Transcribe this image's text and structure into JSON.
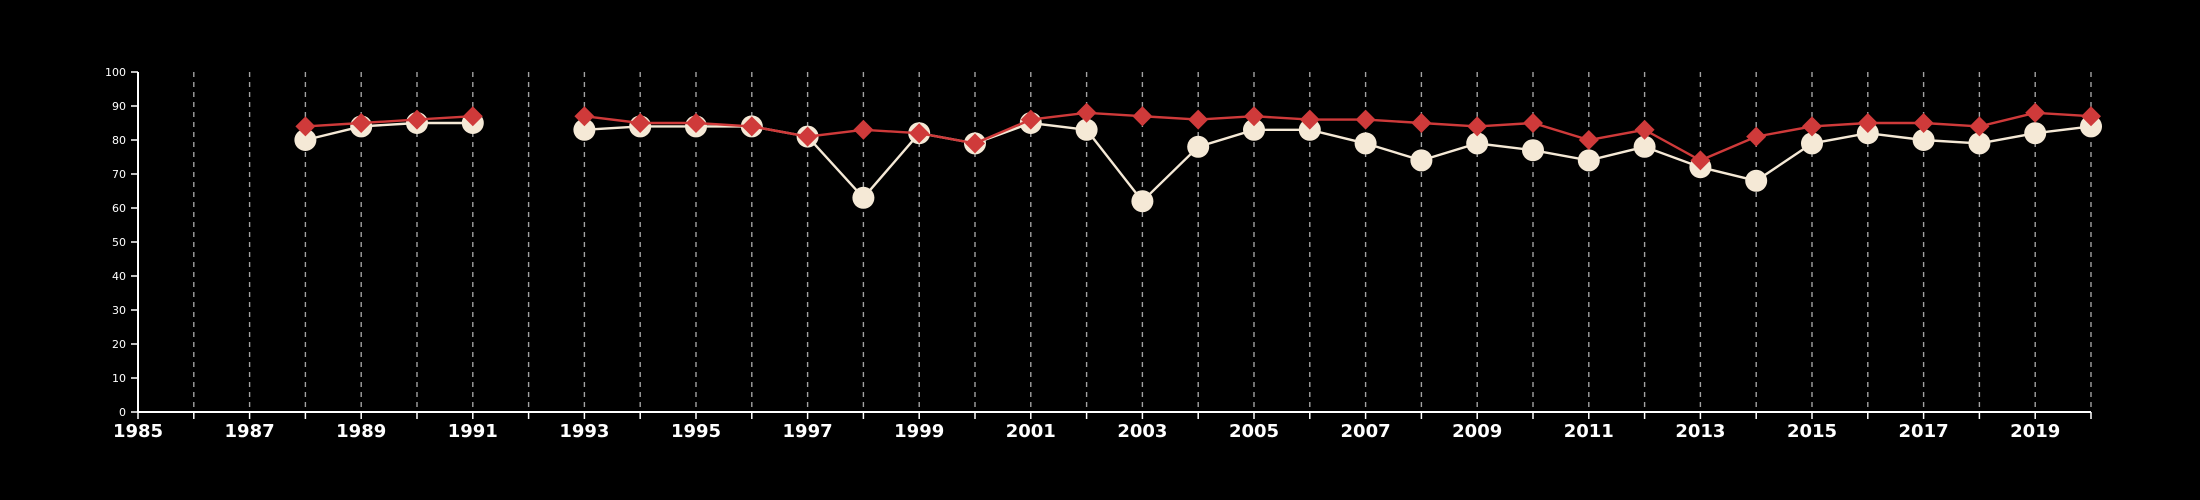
{
  "chart_data": {
    "type": "line",
    "title": "",
    "xlabel": "",
    "ylabel": "",
    "xlim": [
      1985,
      2020
    ],
    "ylim": [
      0,
      100
    ],
    "x_ticks_labeled": [
      1985,
      1987,
      1989,
      1991,
      1993,
      1995,
      1997,
      1999,
      2001,
      2003,
      2005,
      2007,
      2009,
      2011,
      2013,
      2015,
      2017,
      2019
    ],
    "y_ticks": [
      0,
      10,
      20,
      30,
      40,
      50,
      60,
      70,
      80,
      90,
      100
    ],
    "grid": "vertical-dashed",
    "background_color": "#000000",
    "axis_color": "#ffffff",
    "series": [
      {
        "color": "#f5e9d6",
        "marker": "circle",
        "points": [
          [
            1988,
            80
          ],
          [
            1989,
            84
          ],
          [
            1990,
            85
          ],
          [
            1991,
            85
          ],
          [
            1993,
            83
          ],
          [
            1994,
            84
          ],
          [
            1995,
            84
          ],
          [
            1996,
            84
          ],
          [
            1997,
            81
          ],
          [
            1998,
            63
          ],
          [
            1999,
            82
          ],
          [
            2000,
            79
          ],
          [
            2001,
            85
          ],
          [
            2002,
            83
          ],
          [
            2003,
            62
          ],
          [
            2004,
            78
          ],
          [
            2005,
            83
          ],
          [
            2006,
            83
          ],
          [
            2007,
            79
          ],
          [
            2008,
            74
          ],
          [
            2009,
            79
          ],
          [
            2010,
            77
          ],
          [
            2011,
            74
          ],
          [
            2012,
            78
          ],
          [
            2013,
            72
          ],
          [
            2014,
            68
          ],
          [
            2015,
            79
          ],
          [
            2016,
            82
          ],
          [
            2017,
            80
          ],
          [
            2018,
            79
          ],
          [
            2019,
            82
          ],
          [
            2020,
            84
          ]
        ]
      },
      {
        "color": "#cf3a3a",
        "marker": "diamond",
        "points": [
          [
            1988,
            84
          ],
          [
            1989,
            85
          ],
          [
            1990,
            86
          ],
          [
            1991,
            87
          ],
          [
            1993,
            87
          ],
          [
            1994,
            85
          ],
          [
            1995,
            85
          ],
          [
            1996,
            84
          ],
          [
            1997,
            81
          ],
          [
            1998,
            83
          ],
          [
            1999,
            82
          ],
          [
            2000,
            79
          ],
          [
            2001,
            86
          ],
          [
            2002,
            88
          ],
          [
            2003,
            87
          ],
          [
            2004,
            86
          ],
          [
            2005,
            87
          ],
          [
            2006,
            86
          ],
          [
            2007,
            86
          ],
          [
            2008,
            85
          ],
          [
            2009,
            84
          ],
          [
            2010,
            85
          ],
          [
            2011,
            80
          ],
          [
            2012,
            83
          ],
          [
            2013,
            74
          ],
          [
            2014,
            81
          ],
          [
            2015,
            84
          ],
          [
            2016,
            85
          ],
          [
            2017,
            85
          ],
          [
            2018,
            84
          ],
          [
            2019,
            88
          ],
          [
            2020,
            87
          ]
        ]
      }
    ]
  }
}
